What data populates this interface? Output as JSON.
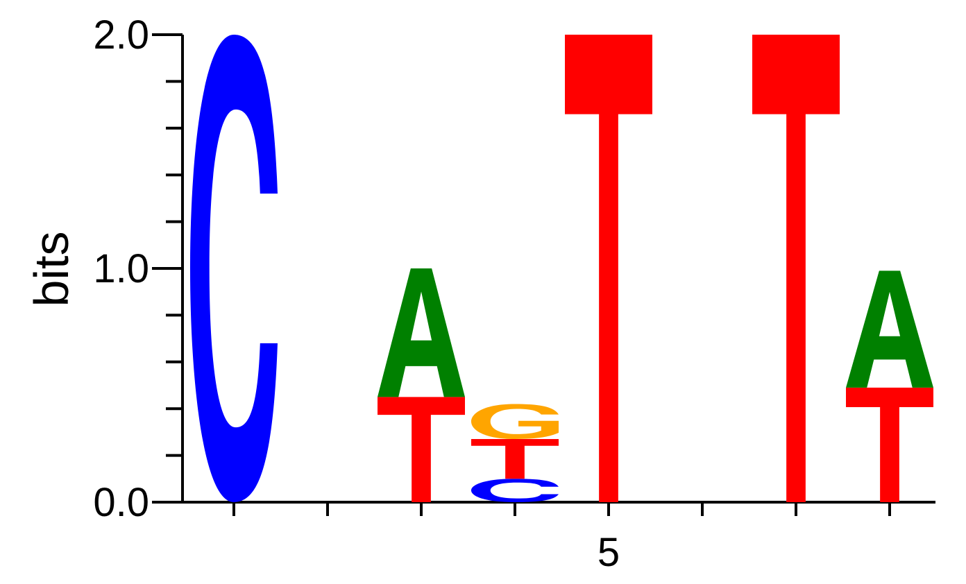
{
  "chart_data": {
    "type": "sequence-logo",
    "ylabel": "bits",
    "ylim": [
      0,
      2
    ],
    "y_ticks": [
      "0.0",
      "1.0",
      "2.0"
    ],
    "x_tick_labels": [
      {
        "position": 5,
        "label": "5"
      }
    ],
    "positions": [
      {
        "position": 1,
        "stack": [
          {
            "base": "C",
            "height": 2.0
          }
        ]
      },
      {
        "position": 2,
        "stack": []
      },
      {
        "position": 3,
        "stack": [
          {
            "base": "T",
            "height": 0.45
          },
          {
            "base": "A",
            "height": 0.55
          }
        ]
      },
      {
        "position": 4,
        "stack": [
          {
            "base": "C",
            "height": 0.1
          },
          {
            "base": "T",
            "height": 0.17
          },
          {
            "base": "G",
            "height": 0.15
          }
        ]
      },
      {
        "position": 5,
        "stack": [
          {
            "base": "T",
            "height": 2.0
          }
        ]
      },
      {
        "position": 6,
        "stack": []
      },
      {
        "position": 7,
        "stack": [
          {
            "base": "T",
            "height": 2.0
          }
        ]
      },
      {
        "position": 8,
        "stack": [
          {
            "base": "T",
            "height": 0.49
          },
          {
            "base": "A",
            "height": 0.5
          }
        ]
      }
    ],
    "base_colors": {
      "A": "#008000",
      "C": "#0000ff",
      "G": "#ffa500",
      "T": "#ff0000"
    }
  }
}
